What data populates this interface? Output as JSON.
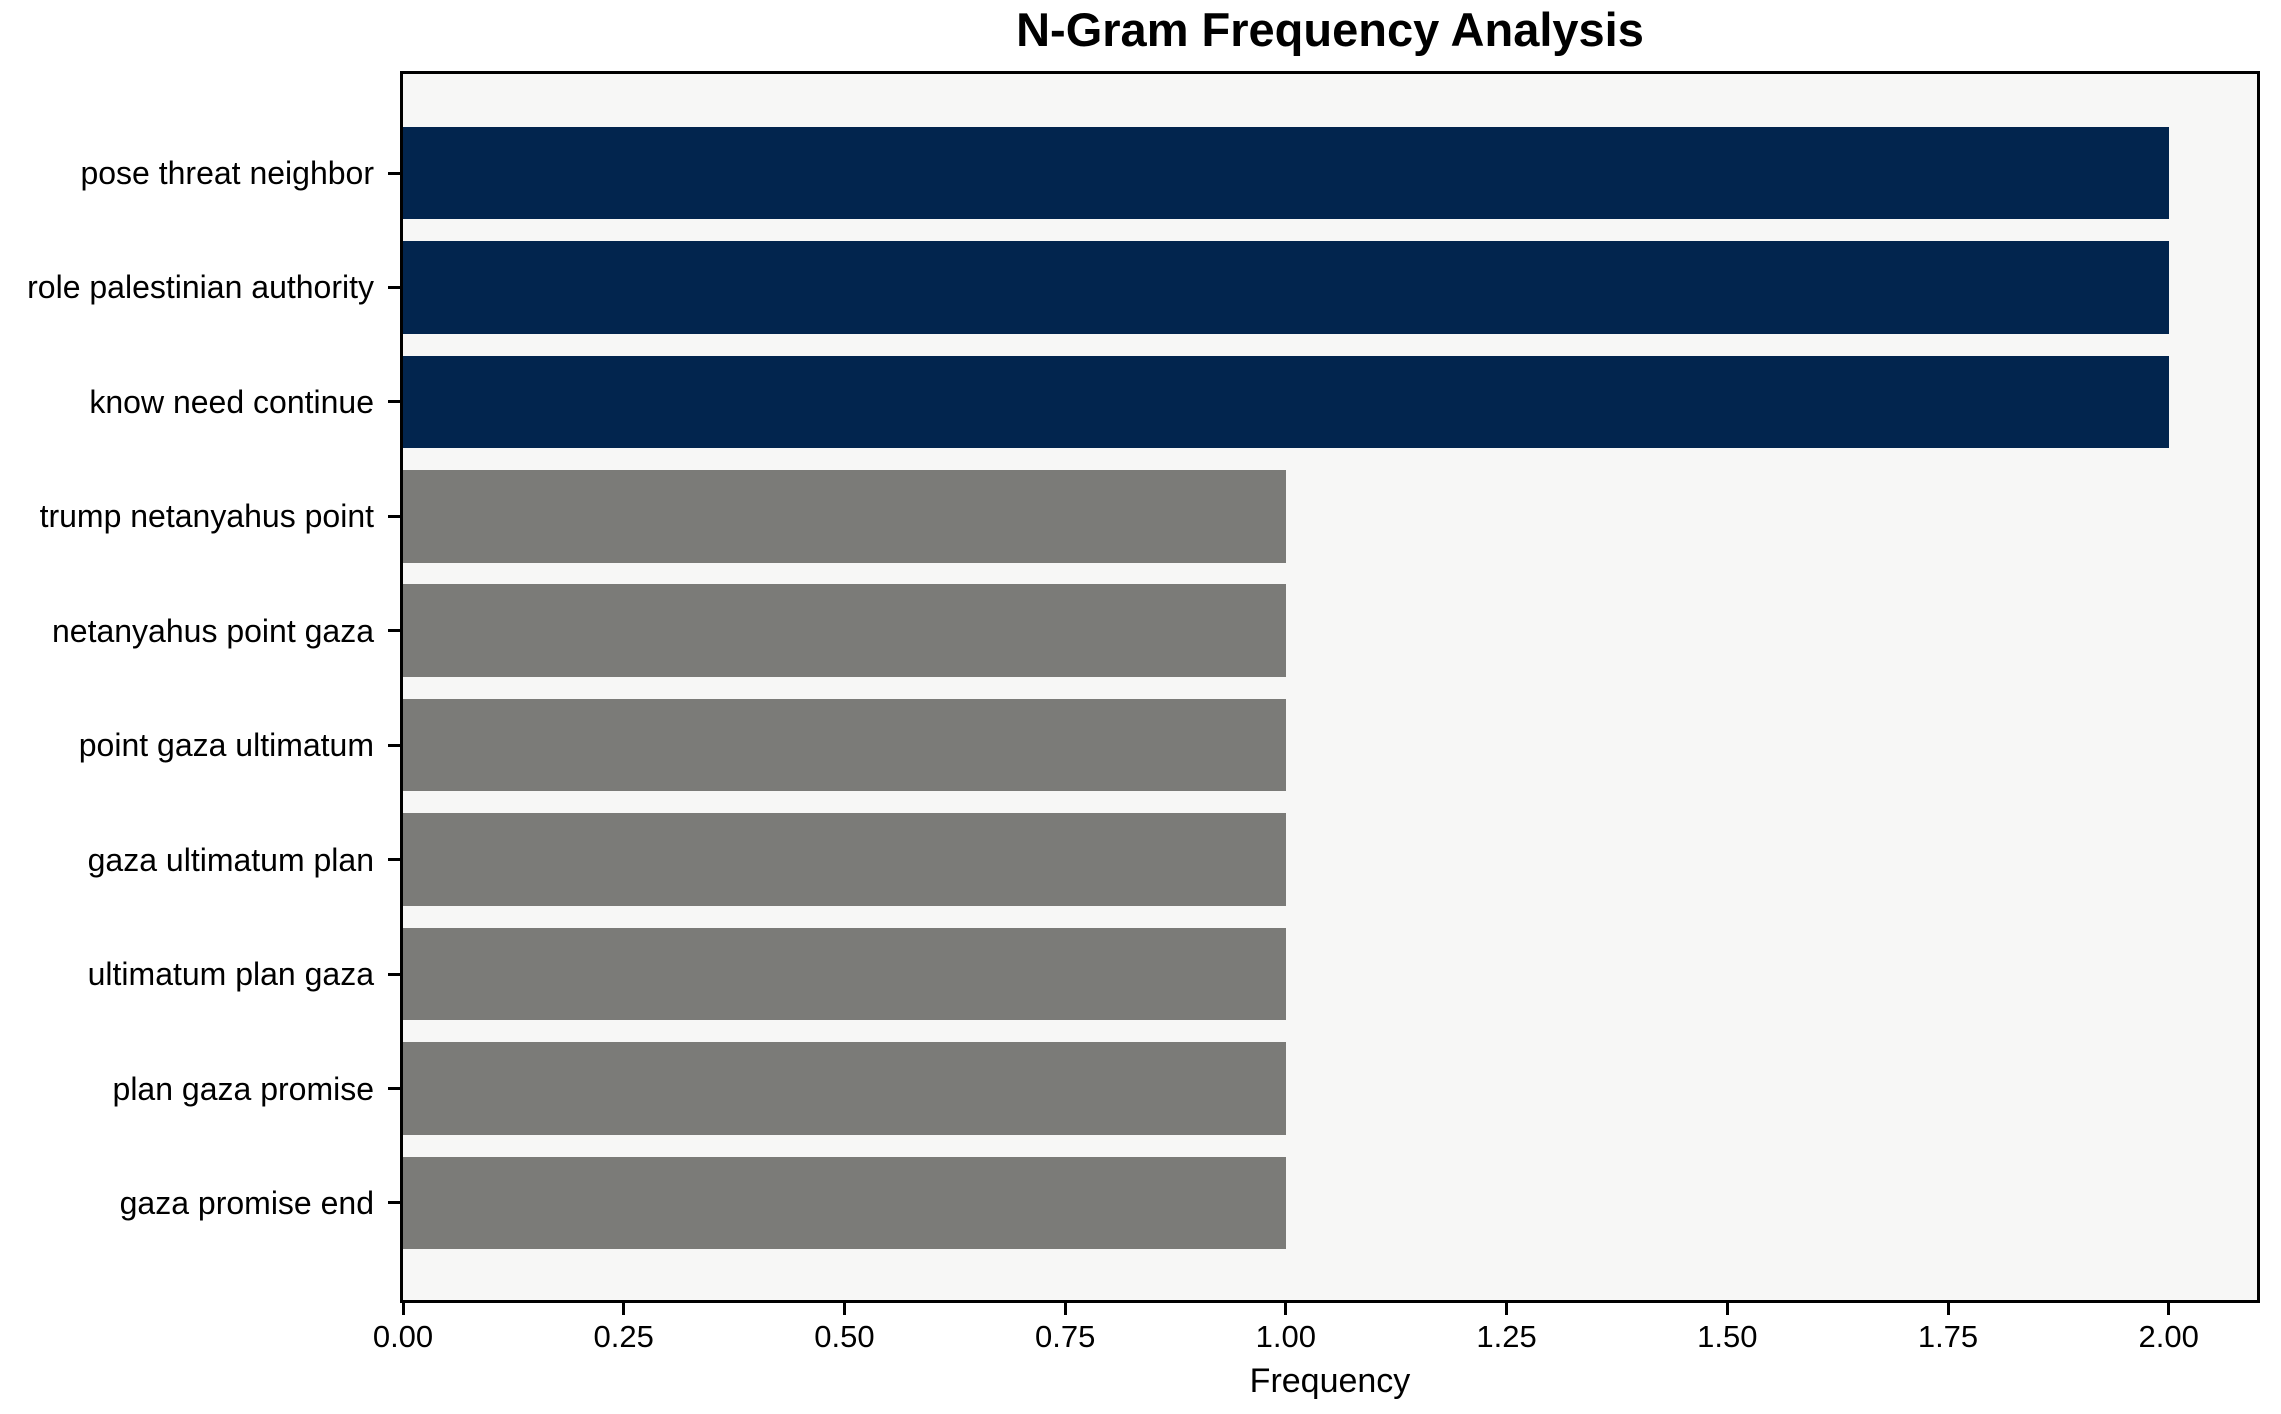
{
  "chart_data": {
    "type": "bar",
    "orientation": "horizontal",
    "title": "N-Gram Frequency Analysis",
    "xlabel": "Frequency",
    "ylabel": "",
    "categories": [
      "pose threat neighbor",
      "role palestinian authority",
      "know need continue",
      "trump netanyahus point",
      "netanyahus point gaza",
      "point gaza ultimatum",
      "gaza ultimatum plan",
      "ultimatum plan gaza",
      "plan gaza promise",
      "gaza promise end"
    ],
    "values": [
      2,
      2,
      2,
      1,
      1,
      1,
      1,
      1,
      1,
      1
    ],
    "bar_colors": [
      "#02254e",
      "#02254e",
      "#02254e",
      "#7b7b78",
      "#7b7b78",
      "#7b7b78",
      "#7b7b78",
      "#7b7b78",
      "#7b7b78",
      "#7b7b78"
    ],
    "highlight_color": "#02254e",
    "default_color": "#7b7b78",
    "xlim": [
      0,
      2.1
    ],
    "xticks": [
      0,
      0.25,
      0.5,
      0.75,
      1.0,
      1.25,
      1.5,
      1.75,
      2.0
    ],
    "xtick_labels": [
      "0.00",
      "0.25",
      "0.50",
      "0.75",
      "1.00",
      "1.25",
      "1.50",
      "1.75",
      "2.00"
    ],
    "grid": false,
    "legend": null,
    "plot_background": "#f7f7f6",
    "figure_background": "#ffffff",
    "spine_color": "#000000",
    "text_color": "#000000"
  }
}
